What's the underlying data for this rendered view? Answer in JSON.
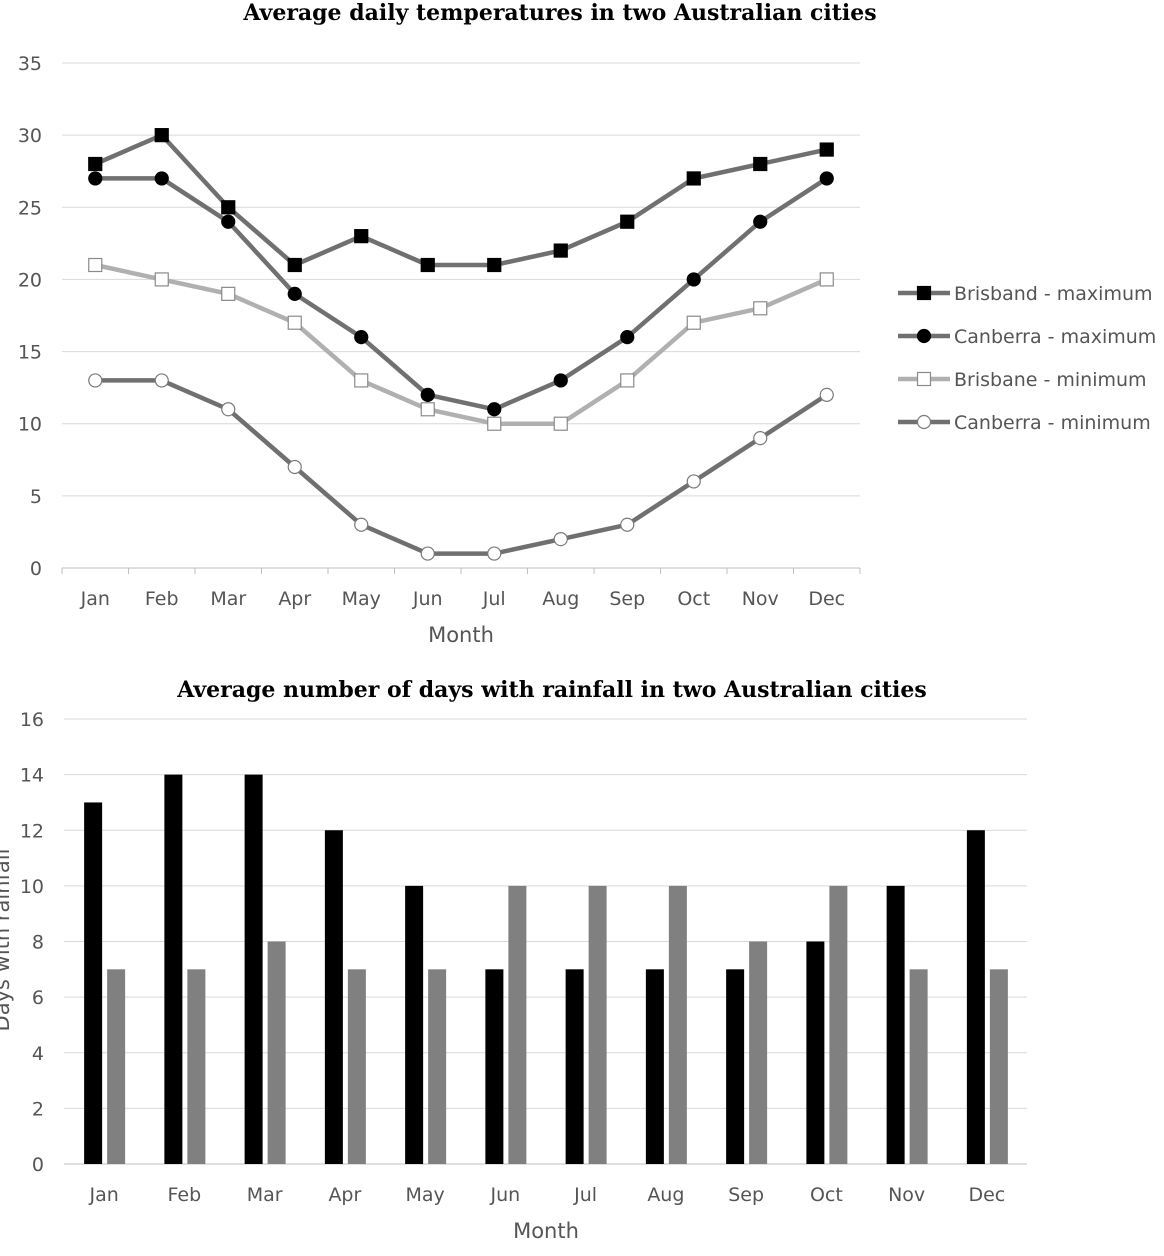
{
  "chart_data": [
    {
      "type": "line",
      "title": "Average daily temperatures in two Australian cities",
      "xlabel": "Month",
      "ylabel": "",
      "ylim": [
        0,
        35
      ],
      "yticks": [
        "0",
        "5",
        "10",
        "15",
        "20",
        "25",
        "30",
        "35"
      ],
      "grid": true,
      "legend_position": "right",
      "categories": [
        "Jan",
        "Feb",
        "Mar",
        "Apr",
        "May",
        "Jun",
        "Jul",
        "Aug",
        "Sep",
        "Oct",
        "Nov",
        "Dec"
      ],
      "series": [
        {
          "name": "Brisband - maximum",
          "marker": "filled-square",
          "color": "#707070",
          "marker_color": "#000000",
          "values": [
            28,
            30,
            25,
            21,
            23,
            21,
            21,
            22,
            24,
            27,
            28,
            29
          ]
        },
        {
          "name": "Canberra - maximum",
          "marker": "filled-circle",
          "color": "#707070",
          "marker_color": "#000000",
          "values": [
            27,
            27,
            24,
            19,
            16,
            12,
            11,
            13,
            16,
            20,
            24,
            27
          ]
        },
        {
          "name": "Brisbane - minimum",
          "marker": "hollow-square",
          "color": "#b0b0b0",
          "marker_color": "#ffffff",
          "values": [
            21,
            20,
            19,
            17,
            13,
            11,
            10,
            10,
            13,
            17,
            18,
            20
          ]
        },
        {
          "name": "Canberra - minimum",
          "marker": "hollow-circle",
          "color": "#707070",
          "marker_color": "#ffffff",
          "values": [
            13,
            13,
            11,
            7,
            3,
            1,
            1,
            2,
            3,
            6,
            9,
            12
          ]
        }
      ]
    },
    {
      "type": "bar",
      "title": "Average number of days with rainfall in two Australian cities",
      "xlabel": "Month",
      "ylabel": "Days with rainfall",
      "ylim": [
        0,
        16
      ],
      "yticks": [
        "0",
        "2",
        "4",
        "6",
        "8",
        "10",
        "12",
        "14",
        "16"
      ],
      "grid": true,
      "categories": [
        "Jan",
        "Feb",
        "Mar",
        "Apr",
        "May",
        "Jun",
        "Jul",
        "Aug",
        "Sep",
        "Oct",
        "Nov",
        "Dec"
      ],
      "series": [
        {
          "color": "#000000",
          "values": [
            13,
            14,
            14,
            12,
            10,
            7,
            7,
            7,
            7,
            8,
            10,
            12
          ]
        },
        {
          "color": "#808080",
          "values": [
            7,
            7,
            8,
            7,
            7,
            10,
            10,
            10,
            8,
            10,
            7,
            7
          ]
        }
      ]
    }
  ]
}
